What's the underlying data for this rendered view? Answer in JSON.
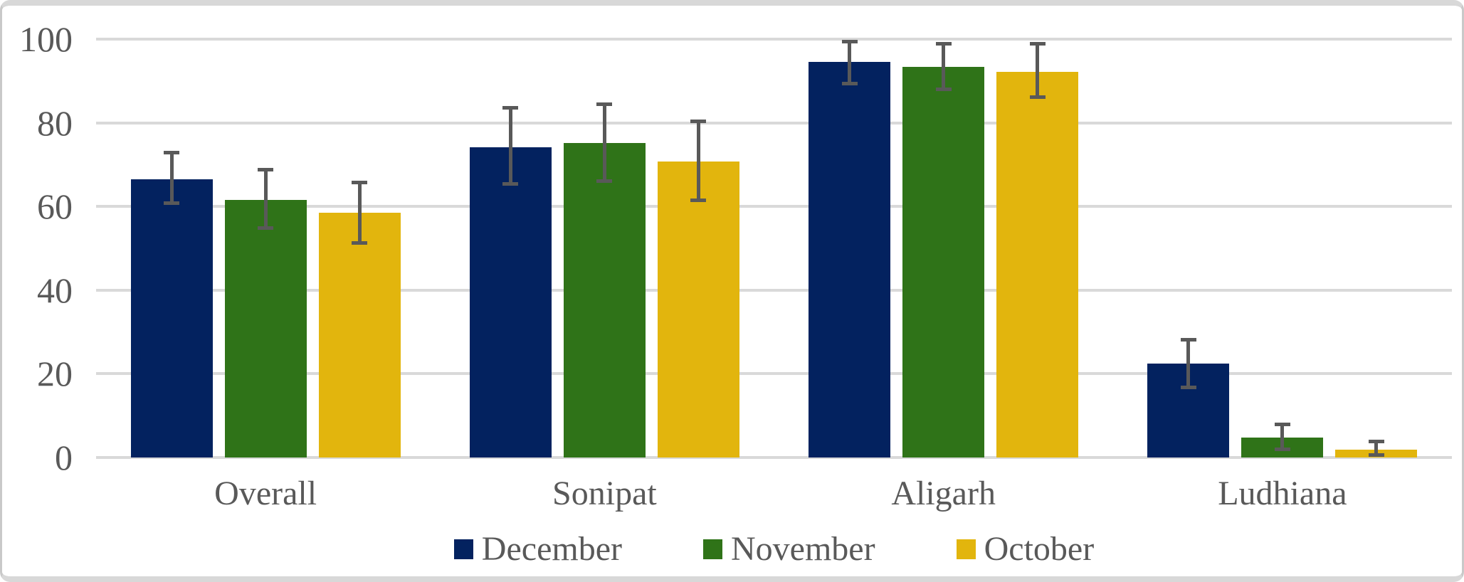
{
  "chart_data": {
    "type": "bar",
    "title": "",
    "xlabel": "",
    "ylabel": "",
    "categories": [
      "Overall",
      "Sonipat",
      "Aligarh",
      "Ludhiana"
    ],
    "series": [
      {
        "name": "December",
        "color": "#03225F",
        "values": [
          66.5,
          74.2,
          94.6,
          22.4
        ],
        "error_low": [
          60.3,
          65.0,
          89.0,
          16.3
        ],
        "error_high": [
          73.3,
          84.0,
          99.9,
          28.6
        ]
      },
      {
        "name": "November",
        "color": "#2F7318",
        "values": [
          61.5,
          75.2,
          93.3,
          4.7
        ],
        "error_low": [
          54.4,
          65.7,
          87.6,
          1.6
        ],
        "error_high": [
          69.2,
          84.8,
          99.4,
          8.4
        ]
      },
      {
        "name": "October",
        "color": "#E2B50D",
        "values": [
          58.5,
          70.7,
          92.2,
          1.9
        ],
        "error_low": [
          50.9,
          61.0,
          85.7,
          0.2
        ],
        "error_high": [
          66.2,
          80.8,
          99.4,
          4.3
        ]
      }
    ],
    "ylim": [
      0,
      100
    ],
    "yticks": [
      0,
      20,
      40,
      60,
      80,
      100
    ],
    "grid": true,
    "legend_position": "bottom"
  },
  "style_colors": {
    "gridline": "#D9D9D9",
    "error_bar": "#595959",
    "text": "#595959",
    "frame_border": "#C9C9C9",
    "frame_band": "#D8D8D8",
    "background": "#FFFFFF"
  }
}
